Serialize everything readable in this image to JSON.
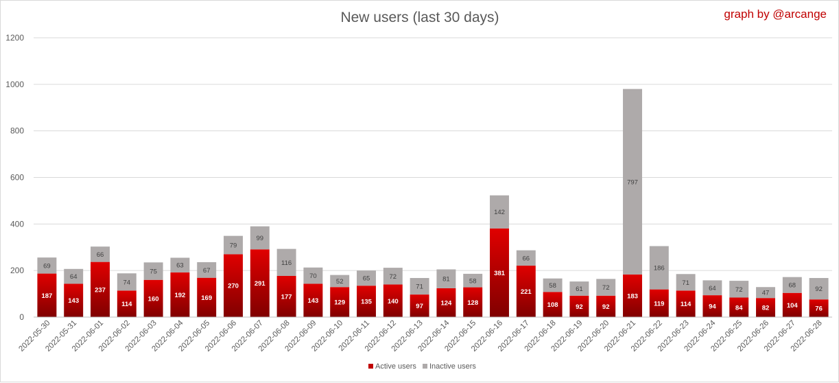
{
  "chart_data": {
    "type": "bar",
    "stacked": true,
    "title": "New users (last 30 days)",
    "credit": "graph by @arcange",
    "categories": [
      "2022-05-30",
      "2022-05-31",
      "2022-06-01",
      "2022-06-02",
      "2022-06-03",
      "2022-06-04",
      "2022-06-05",
      "2022-06-06",
      "2022-06-07",
      "2022-06-08",
      "2022-06-09",
      "2022-06-10",
      "2022-06-11",
      "2022-06-12",
      "2022-06-13",
      "2022-06-14",
      "2022-06-15",
      "2022-06-16",
      "2022-06-17",
      "2022-06-18",
      "2022-06-19",
      "2022-06-20",
      "2022-06-21",
      "2022-06-22",
      "2022-06-23",
      "2022-06-24",
      "2022-06-25",
      "2022-06-26",
      "2022-06-27",
      "2022-06-28"
    ],
    "series": [
      {
        "name": "Active users",
        "color": "#c00000",
        "values": [
          187,
          143,
          237,
          114,
          160,
          192,
          169,
          270,
          291,
          177,
          143,
          129,
          135,
          140,
          97,
          124,
          128,
          381,
          221,
          108,
          92,
          92,
          183,
          119,
          114,
          94,
          84,
          82,
          104,
          76
        ]
      },
      {
        "name": "Inactive users",
        "color": "#aeaaaa",
        "values": [
          69,
          64,
          66,
          74,
          75,
          63,
          67,
          79,
          99,
          116,
          70,
          52,
          65,
          72,
          71,
          81,
          58,
          142,
          66,
          58,
          61,
          72,
          797,
          186,
          71,
          64,
          72,
          47,
          68,
          92
        ]
      }
    ],
    "ylim": [
      0,
      1200
    ],
    "yticks": [
      0,
      200,
      400,
      600,
      800,
      1000,
      1200
    ],
    "grid": true,
    "legend_position": "bottom",
    "data_labels": true
  }
}
